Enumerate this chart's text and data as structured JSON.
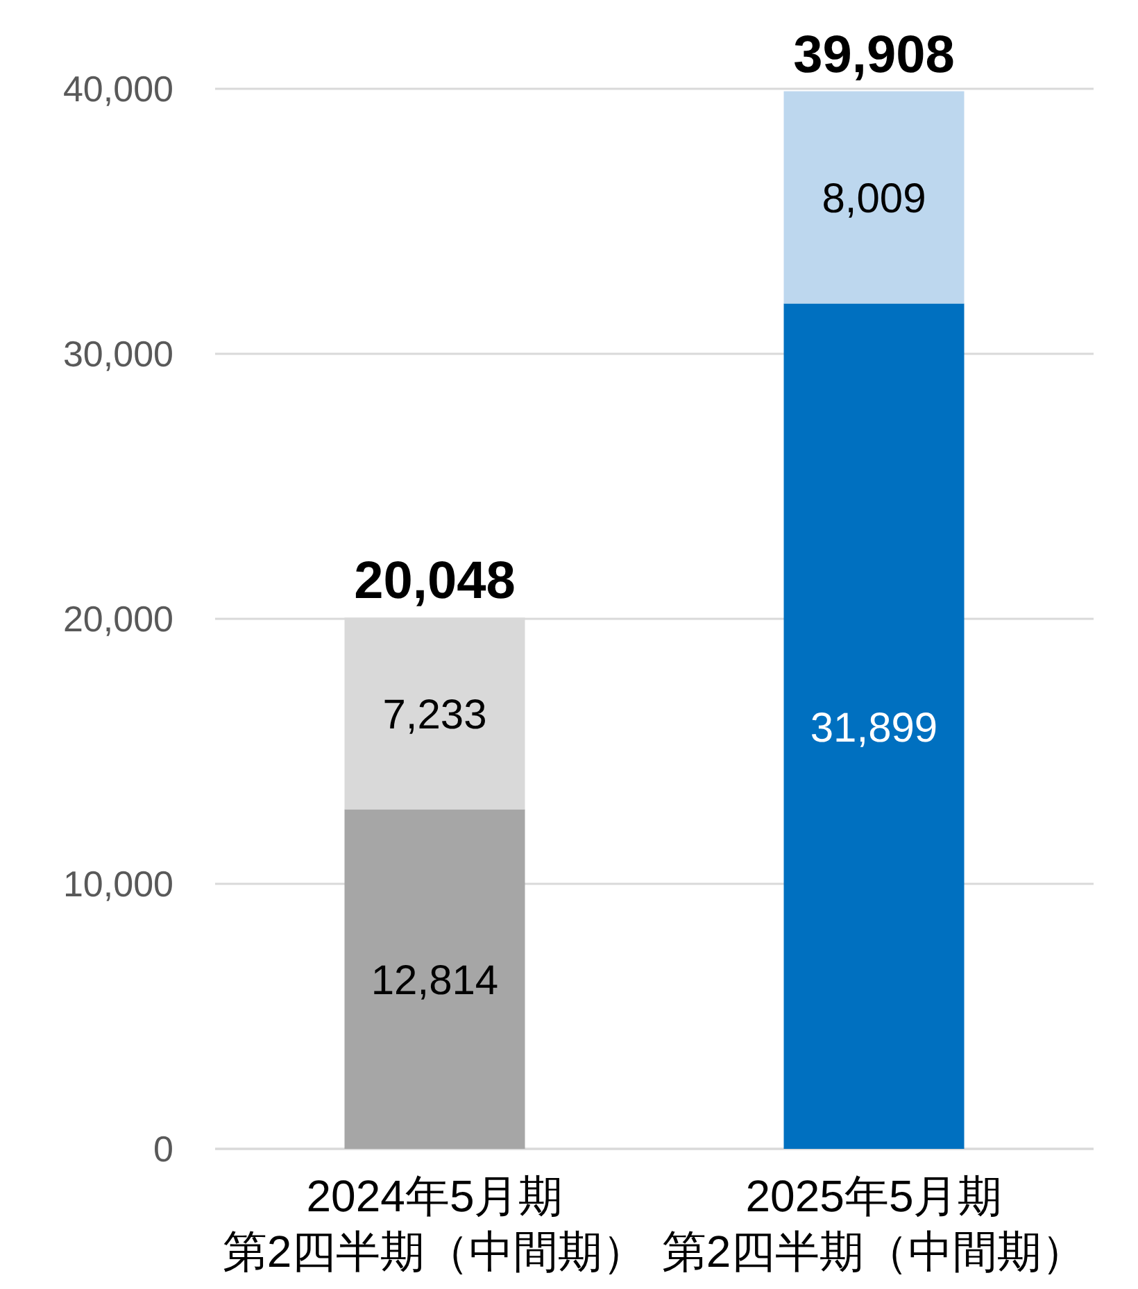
{
  "chart_data": {
    "type": "bar",
    "stacked": true,
    "categories": [
      "2024年5月期第2四半期（中間期）",
      "2025年5月期第2四半期（中間期）"
    ],
    "series": [
      {
        "colors": [
          "#a6a6a6",
          "#0070c0"
        ],
        "values": [
          12814,
          31899
        ],
        "value_labels": [
          "12,814",
          "31,899"
        ]
      },
      {
        "colors": [
          "#d9d9d9",
          "#bdd7ee"
        ],
        "values": [
          7233,
          8009
        ],
        "value_labels": [
          "7,233",
          "8,009"
        ]
      }
    ],
    "totals": [
      "20,048",
      "39,908"
    ],
    "ylim": [
      0,
      40000
    ],
    "yticks": [
      0,
      {
        "value": 10000,
        "label": "10,000"
      },
      {
        "value": 20000,
        "label": "20,000"
      },
      {
        "value": 30000,
        "label": "30,000"
      },
      {
        "value": 40000,
        "label": "40,000"
      }
    ],
    "grid": "y"
  }
}
